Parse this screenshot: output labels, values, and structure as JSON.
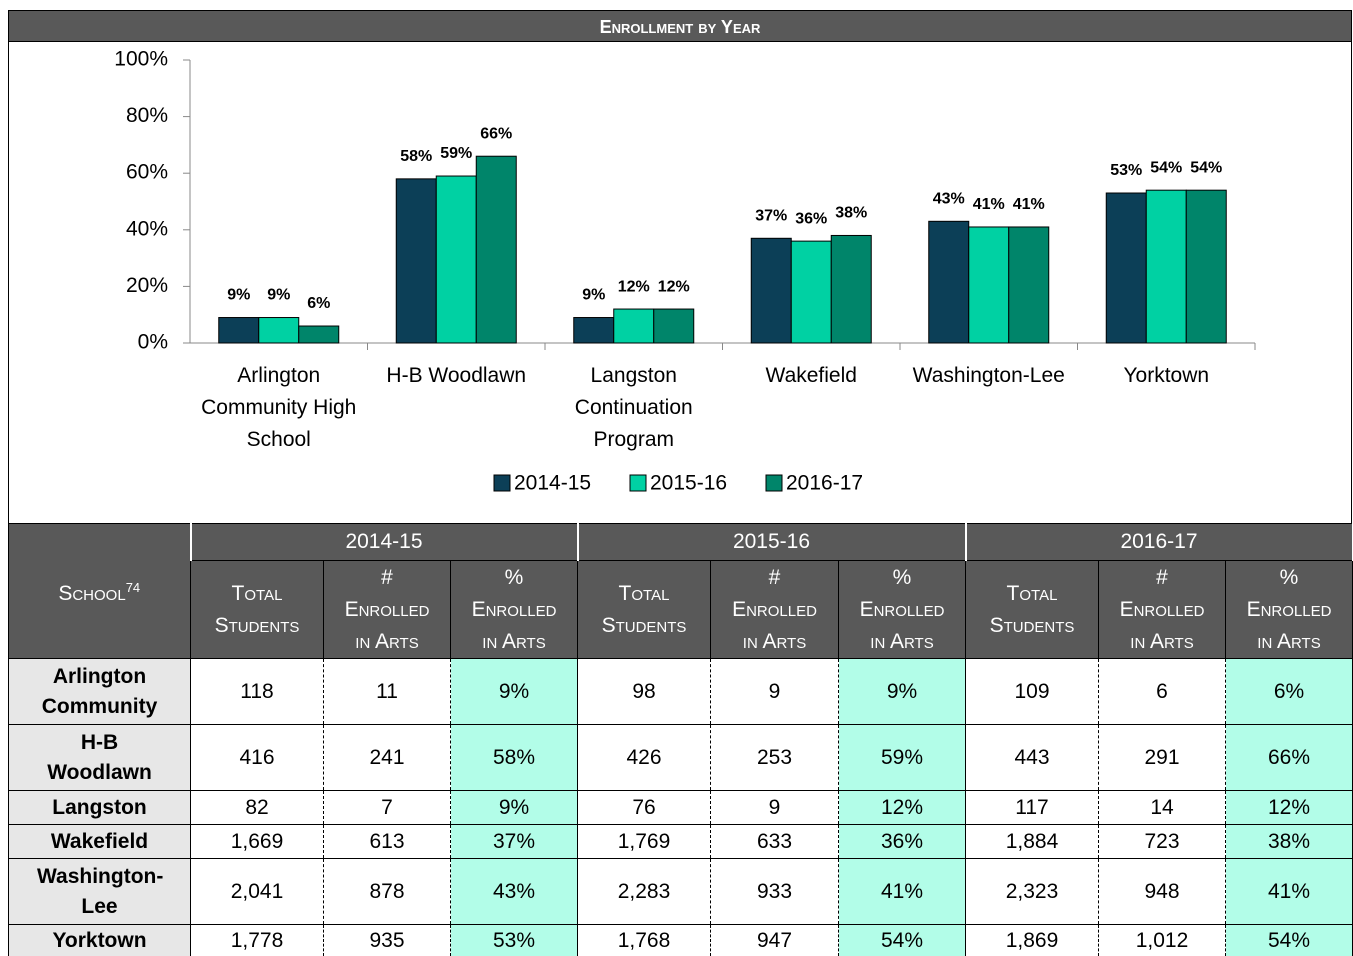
{
  "chart_data": {
    "type": "bar",
    "title": "Enrollment by Year",
    "categories": [
      "Arlington Community High School",
      "H-B Woodlawn",
      "Langston Continuation Program",
      "Wakefield",
      "Washington-Lee",
      "Yorktown"
    ],
    "series": [
      {
        "name": "2014-15",
        "color": "#0c3f57",
        "values": [
          9,
          58,
          9,
          37,
          43,
          53
        ],
        "value_labels": [
          "9%",
          "58%",
          "9%",
          "37%",
          "43%",
          "53%"
        ]
      },
      {
        "name": "2015-16",
        "color": "#00d1a3",
        "values": [
          9,
          59,
          12,
          36,
          41,
          54
        ],
        "value_labels": [
          "9%",
          "59%",
          "12%",
          "36%",
          "41%",
          "54%"
        ]
      },
      {
        "name": "2016-17",
        "color": "#00856a",
        "values": [
          6,
          66,
          12,
          38,
          41,
          54
        ],
        "value_labels": [
          "6%",
          "66%",
          "12%",
          "38%",
          "41%",
          "54%"
        ]
      }
    ],
    "ylim": [
      0,
      100
    ],
    "yticks": [
      {
        "value": 0,
        "label": "0%"
      },
      {
        "value": 20,
        "label": "20%"
      },
      {
        "value": 40,
        "label": "40%"
      },
      {
        "value": 60,
        "label": "60%"
      },
      {
        "value": 80,
        "label": "80%"
      },
      {
        "value": 100,
        "label": "100%"
      }
    ],
    "legend": "bottom"
  },
  "table": {
    "school_header": "School",
    "footnote": "74",
    "years": [
      "2014-15",
      "2015-16",
      "2016-17"
    ],
    "columns": [
      "Total Students",
      "# Enrolled in Arts",
      "% Enrolled in Arts"
    ],
    "rows": [
      {
        "school": "Arlington Community",
        "cells": [
          "118",
          "11",
          "9%",
          "98",
          "9",
          "9%",
          "109",
          "6",
          "6%"
        ]
      },
      {
        "school": "H-B Woodlawn",
        "cells": [
          "416",
          "241",
          "58%",
          "426",
          "253",
          "59%",
          "443",
          "291",
          "66%"
        ]
      },
      {
        "school": "Langston",
        "cells": [
          "82",
          "7",
          "9%",
          "76",
          "9",
          "12%",
          "117",
          "14",
          "12%"
        ]
      },
      {
        "school": "Wakefield",
        "cells": [
          "1,669",
          "613",
          "37%",
          "1,769",
          "633",
          "36%",
          "1,884",
          "723",
          "38%"
        ]
      },
      {
        "school": "Washington-Lee",
        "cells": [
          "2,041",
          "878",
          "43%",
          "2,283",
          "933",
          "41%",
          "2,323",
          "948",
          "41%"
        ]
      },
      {
        "school": "Yorktown",
        "cells": [
          "1,778",
          "935",
          "53%",
          "1,768",
          "947",
          "54%",
          "1,869",
          "1,012",
          "54%"
        ]
      }
    ]
  }
}
